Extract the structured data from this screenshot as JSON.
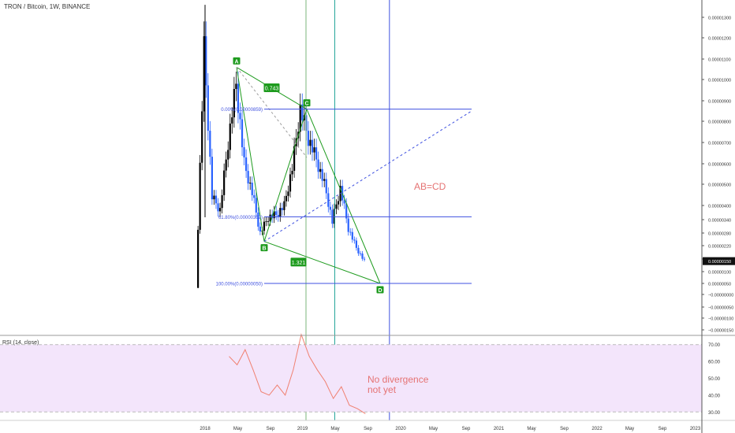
{
  "header": {
    "title": "TRON / Bitcoin, 1W, BINANCE"
  },
  "colors": {
    "up": "#000000",
    "down": "#2962ff",
    "pattern": "#1e9b1e",
    "level": "#3f51e0",
    "vline_green": "#26a69a",
    "vline_gray": "#7bb47b",
    "rsi_line": "#f08070",
    "rsi_band": "#f3e5fb",
    "annotation": "#e57373"
  },
  "chart_data": [
    {
      "type": "candlestick",
      "title": "TRON / Bitcoin, 1W, BINANCE",
      "price_axis_ticks": [
        "0.00001300",
        "0.00001200",
        "0.00001100",
        "0.00001000",
        "0.00000900",
        "0.00000800",
        "0.00000700",
        "0.00000600",
        "0.00000500",
        "0.00000400",
        "0.00000340",
        "0.00000280",
        "0.00000220",
        "0.00000160",
        "0.00000100",
        "0.00000050",
        "−0.00000000",
        "−0.00000050",
        "−0.00000100",
        "−0.00000150"
      ],
      "last_price_label": "0.00000150",
      "time_axis_ticks": [
        "2018",
        "May",
        "Sep",
        "2019",
        "May",
        "Sep",
        "2020",
        "May",
        "Sep",
        "2021",
        "May",
        "Sep",
        "2022",
        "May",
        "Sep",
        "2023"
      ],
      "close_series": [
        {
          "t": "2017-12",
          "v": 3e-07
        },
        {
          "t": "2018-01",
          "v": 1.15e-05
        },
        {
          "t": "2018-02",
          "v": 4.4e-06
        },
        {
          "t": "2018-03",
          "v": 3.8e-06
        },
        {
          "t": "2018-04",
          "v": 7e-06
        },
        {
          "t": "2018-05",
          "v": 9.8e-06
        },
        {
          "t": "2018-06",
          "v": 6e-06
        },
        {
          "t": "2018-07",
          "v": 4.6e-06
        },
        {
          "t": "2018-08",
          "v": 2.8e-06
        },
        {
          "t": "2018-09",
          "v": 3.5e-06
        },
        {
          "t": "2018-10",
          "v": 3.6e-06
        },
        {
          "t": "2018-11",
          "v": 4e-06
        },
        {
          "t": "2018-12",
          "v": 5.8e-06
        },
        {
          "t": "2019-01",
          "v": 8.6e-06
        },
        {
          "t": "2019-02",
          "v": 7.2e-06
        },
        {
          "t": "2019-03",
          "v": 6.2e-06
        },
        {
          "t": "2019-04",
          "v": 5e-06
        },
        {
          "t": "2019-05",
          "v": 3.3e-06
        },
        {
          "t": "2019-06",
          "v": 4.8e-06
        },
        {
          "t": "2019-07",
          "v": 3e-06
        },
        {
          "t": "2019-08",
          "v": 2.1e-06
        },
        {
          "t": "2019-09",
          "v": 1.5e-06
        }
      ],
      "harmonic_points": [
        {
          "label": "A",
          "t": "2018-05",
          "v": 1.06e-05
        },
        {
          "label": "B",
          "t": "2018-09",
          "v": 2.4e-06
        },
        {
          "label": "C",
          "t": "2019-01",
          "v": 8.59e-06
        },
        {
          "label": "D",
          "t": "2019-12",
          "v": 5e-07
        }
      ],
      "ratio_labels": [
        "0.743",
        "1.321"
      ],
      "fib_levels": [
        {
          "text": "0.00%(0.00000859)",
          "v": 8.59e-06
        },
        {
          "text": "61.80%(0.00000352)",
          "v": 3.52e-06
        },
        {
          "text": "100.00%(0.00000050)",
          "v": 5e-07
        }
      ],
      "annotation": "AB=CD"
    },
    {
      "type": "line",
      "title": "RSI (14, close)",
      "y_ticks": [
        "70.00",
        "60.00",
        "50.00",
        "40.00",
        "30.00"
      ],
      "ylim": [
        25,
        75
      ],
      "band": [
        30,
        70
      ],
      "series": [
        {
          "values": [
            {
              "t": "2018-04",
              "v": 63
            },
            {
              "t": "2018-05",
              "v": 58
            },
            {
              "t": "2018-06",
              "v": 67
            },
            {
              "t": "2018-07",
              "v": 55
            },
            {
              "t": "2018-08",
              "v": 42
            },
            {
              "t": "2018-09",
              "v": 40
            },
            {
              "t": "2018-10",
              "v": 46
            },
            {
              "t": "2018-11",
              "v": 40
            },
            {
              "t": "2018-12",
              "v": 55
            },
            {
              "t": "2019-01",
              "v": 76
            },
            {
              "t": "2019-02",
              "v": 63
            },
            {
              "t": "2019-03",
              "v": 55
            },
            {
              "t": "2019-04",
              "v": 48
            },
            {
              "t": "2019-05",
              "v": 38
            },
            {
              "t": "2019-06",
              "v": 45
            },
            {
              "t": "2019-07",
              "v": 34
            },
            {
              "t": "2019-08",
              "v": 32
            },
            {
              "t": "2019-09",
              "v": 29
            }
          ]
        }
      ],
      "annotation": [
        "No divergence",
        "not yet"
      ]
    }
  ]
}
